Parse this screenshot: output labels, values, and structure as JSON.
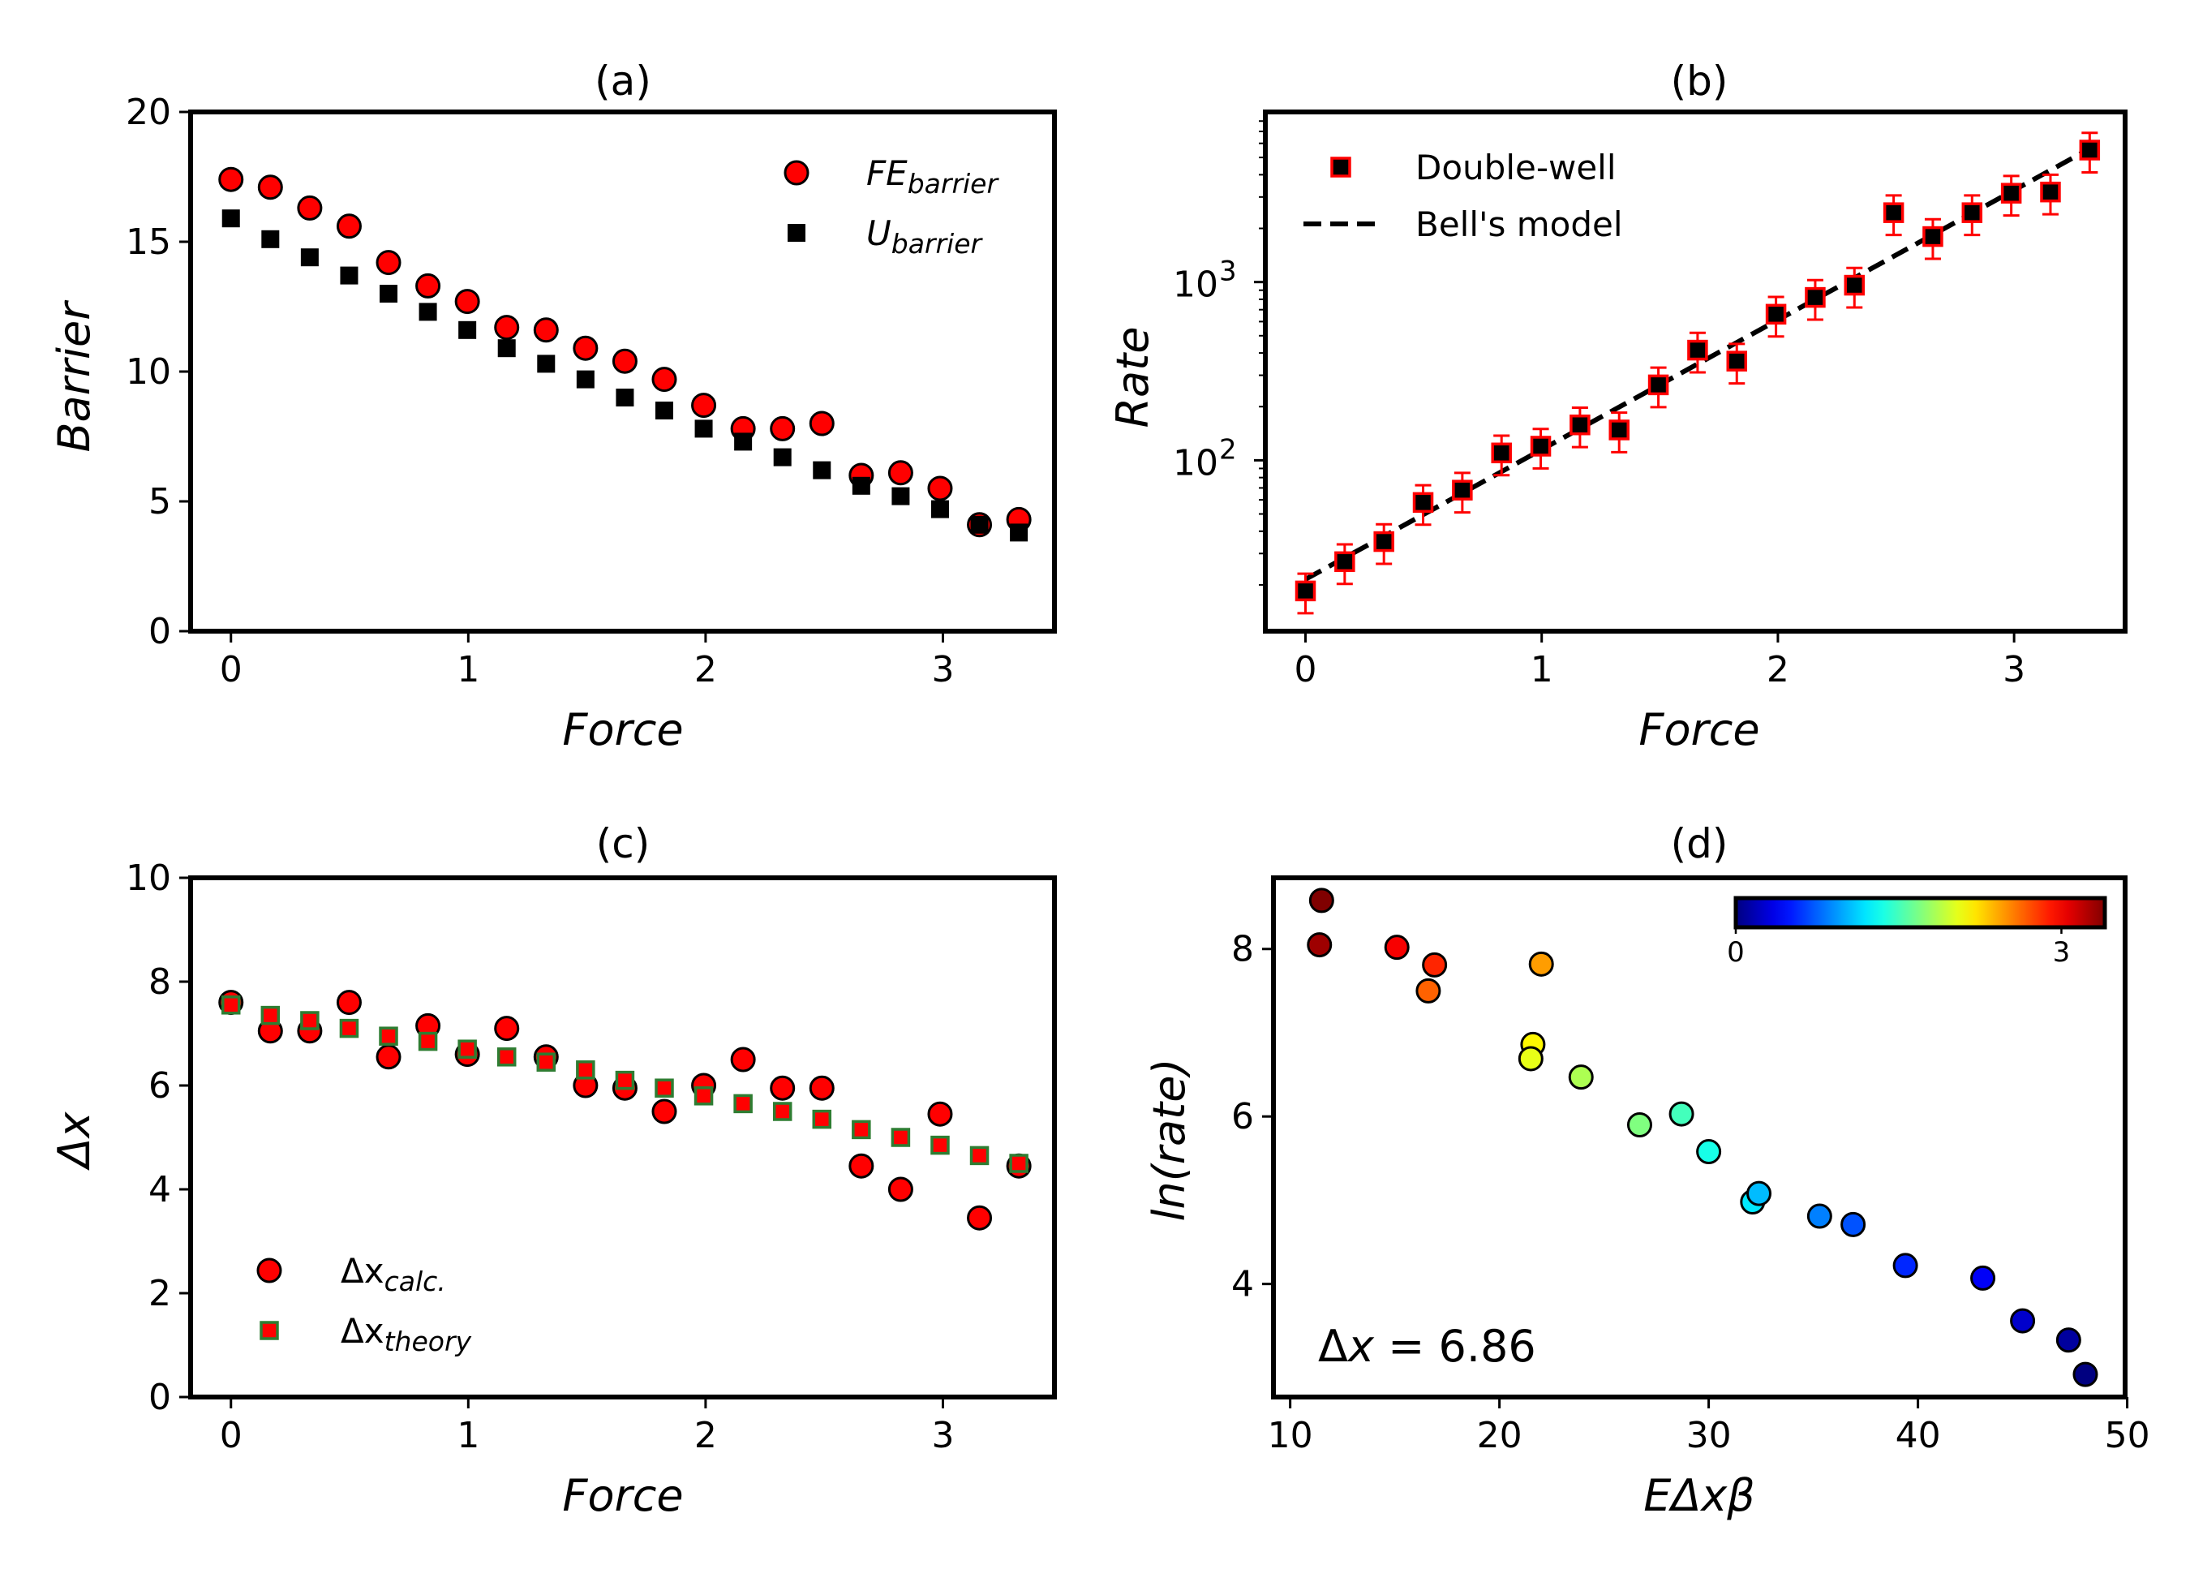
{
  "chart_data": [
    {
      "id": "a",
      "type": "scatter",
      "title": "(a)",
      "xlabel": "Force",
      "ylabel": "Barrier",
      "xlim": [
        -0.17,
        3.47
      ],
      "ylim": [
        0,
        20
      ],
      "xticks": [
        "0",
        "1",
        "2",
        "3"
      ],
      "yticks": [
        "0",
        "5",
        "10",
        "15",
        "20"
      ],
      "legend_position": "upper right",
      "series": [
        {
          "name": "FE_barrier",
          "legend_main": "FE",
          "legend_sub": "barrier",
          "marker": "circle",
          "color": "#ff0000",
          "x": [
            0,
            0.166,
            0.332,
            0.498,
            0.664,
            0.83,
            0.996,
            1.162,
            1.328,
            1.494,
            1.66,
            1.826,
            1.992,
            2.158,
            2.324,
            2.49,
            2.656,
            2.822,
            2.988,
            3.154,
            3.32
          ],
          "y": [
            17.4,
            17.1,
            16.3,
            15.6,
            14.2,
            13.3,
            12.7,
            11.7,
            11.6,
            10.9,
            10.4,
            9.7,
            8.7,
            7.8,
            7.8,
            8.0,
            6.0,
            6.1,
            5.5,
            4.1,
            4.3
          ]
        },
        {
          "name": "U_barrier",
          "legend_main": "U",
          "legend_sub": "barrier",
          "marker": "square",
          "color": "#000000",
          "x": [
            0,
            0.166,
            0.332,
            0.498,
            0.664,
            0.83,
            0.996,
            1.162,
            1.328,
            1.494,
            1.66,
            1.826,
            1.992,
            2.158,
            2.324,
            2.49,
            2.656,
            2.822,
            2.988,
            3.154,
            3.32
          ],
          "y": [
            15.9,
            15.1,
            14.4,
            13.7,
            13.0,
            12.3,
            11.6,
            10.9,
            10.3,
            9.7,
            9.0,
            8.5,
            7.8,
            7.3,
            6.7,
            6.2,
            5.6,
            5.2,
            4.7,
            4.1,
            3.8
          ]
        }
      ]
    },
    {
      "id": "b",
      "type": "scatter",
      "title": "(b)",
      "xlabel": "Force",
      "ylabel": "Rate",
      "xscale": "linear",
      "yscale": "log",
      "xlim": [
        -0.17,
        3.47
      ],
      "ylim": [
        11,
        9000
      ],
      "xticks": [
        "0",
        "1",
        "2",
        "3"
      ],
      "yticks_major": [
        100,
        1000
      ],
      "ytick_labels": [
        "10",
        "10"
      ],
      "ytick_exponents": [
        "2",
        "3"
      ],
      "legend_position": "upper left",
      "series": [
        {
          "name": "Double-well",
          "marker": "square",
          "color": "#000000",
          "edgecolor": "#ff0000",
          "errorbars": true,
          "x": [
            0,
            0.166,
            0.332,
            0.498,
            0.664,
            0.83,
            0.996,
            1.162,
            1.328,
            1.494,
            1.66,
            1.826,
            1.992,
            2.158,
            2.324,
            2.49,
            2.656,
            2.822,
            2.988,
            3.154,
            3.32
          ],
          "y": [
            18.5,
            27,
            35,
            58,
            68,
            110,
            120,
            158,
            148,
            265,
            415,
            360,
            660,
            820,
            960,
            2450,
            1800,
            2450,
            3150,
            3200,
            5500
          ],
          "yerr_rel": 0.25
        },
        {
          "name": "Bell's model",
          "type": "line",
          "style": "dashed",
          "color": "#000000",
          "x": [
            0,
            3.32
          ],
          "y": [
            21.5,
            5600
          ]
        }
      ]
    },
    {
      "id": "c",
      "type": "scatter",
      "title": "(c)",
      "xlabel": "Force",
      "ylabel": "Δx",
      "xlim": [
        -0.17,
        3.47
      ],
      "ylim": [
        0,
        10
      ],
      "xticks": [
        "0",
        "1",
        "2",
        "3"
      ],
      "yticks": [
        "0",
        "2",
        "4",
        "6",
        "8",
        "10"
      ],
      "legend_position": "lower left",
      "series": [
        {
          "name": "Δx_calc.",
          "legend_main": "Δx",
          "legend_sub": "calc.",
          "marker": "circle",
          "color": "#ff0000",
          "x": [
            0,
            0.166,
            0.332,
            0.498,
            0.664,
            0.83,
            0.996,
            1.162,
            1.328,
            1.494,
            1.66,
            1.826,
            1.992,
            2.158,
            2.324,
            2.49,
            2.656,
            2.822,
            2.988,
            3.154,
            3.32
          ],
          "y": [
            7.6,
            7.05,
            7.05,
            7.6,
            6.55,
            7.15,
            6.6,
            7.1,
            6.55,
            6.0,
            5.95,
            5.5,
            6.0,
            6.5,
            5.95,
            5.95,
            4.45,
            4.0,
            5.45,
            3.45,
            4.45
          ]
        },
        {
          "name": "Δx_theory",
          "legend_main": "Δx",
          "legend_sub": "theory",
          "marker": "square",
          "color": "#ff0000",
          "edgecolor": "#2e7d32",
          "x": [
            0,
            0.166,
            0.332,
            0.498,
            0.664,
            0.83,
            0.996,
            1.162,
            1.328,
            1.494,
            1.66,
            1.826,
            1.992,
            2.158,
            2.324,
            2.49,
            2.656,
            2.822,
            2.988,
            3.154,
            3.32
          ],
          "y": [
            7.55,
            7.35,
            7.25,
            7.1,
            6.95,
            6.85,
            6.7,
            6.55,
            6.45,
            6.3,
            6.1,
            5.95,
            5.8,
            5.65,
            5.5,
            5.35,
            5.15,
            5.0,
            4.85,
            4.65,
            4.5
          ]
        }
      ]
    },
    {
      "id": "d",
      "type": "scatter",
      "title": "(d)",
      "xlabel": "EΔxβ",
      "ylabel": "ln(rate)",
      "xlim": [
        9.2,
        49.9
      ],
      "ylim": [
        2.65,
        8.85
      ],
      "xticks": [
        "10",
        "20",
        "30",
        "40",
        "50"
      ],
      "yticks": [
        "4",
        "6",
        "8"
      ],
      "annotation": "Δx = 6.86",
      "annotation_parts": [
        "Δ",
        "x",
        " = 6.86"
      ],
      "colorbar": {
        "cmap": "jet",
        "range": [
          0,
          3.4
        ],
        "tick_labels": [
          "0",
          "3"
        ],
        "tick_values": [
          0,
          3
        ],
        "position": "upper right"
      },
      "points": [
        {
          "x": 11.5,
          "y": 8.58,
          "c": 3.4
        },
        {
          "x": 11.4,
          "y": 8.05,
          "c": 3.3
        },
        {
          "x": 15.1,
          "y": 8.02,
          "c": 3.0
        },
        {
          "x": 16.9,
          "y": 7.81,
          "c": 2.85
        },
        {
          "x": 16.6,
          "y": 7.5,
          "c": 2.65
        },
        {
          "x": 22.0,
          "y": 7.82,
          "c": 2.45
        },
        {
          "x": 21.6,
          "y": 6.86,
          "c": 2.15
        },
        {
          "x": 21.5,
          "y": 6.69,
          "c": 2.05
        },
        {
          "x": 23.9,
          "y": 6.47,
          "c": 1.85
        },
        {
          "x": 26.7,
          "y": 5.9,
          "c": 1.7
        },
        {
          "x": 28.7,
          "y": 6.03,
          "c": 1.5
        },
        {
          "x": 30.0,
          "y": 5.58,
          "c": 1.35
        },
        {
          "x": 32.1,
          "y": 4.98,
          "c": 1.2
        },
        {
          "x": 32.4,
          "y": 5.08,
          "c": 1.05
        },
        {
          "x": 35.3,
          "y": 4.81,
          "c": 0.85
        },
        {
          "x": 36.9,
          "y": 4.71,
          "c": 0.7
        },
        {
          "x": 39.4,
          "y": 4.22,
          "c": 0.55
        },
        {
          "x": 43.1,
          "y": 4.07,
          "c": 0.4
        },
        {
          "x": 45.0,
          "y": 3.56,
          "c": 0.25
        },
        {
          "x": 47.2,
          "y": 3.33,
          "c": 0.1
        },
        {
          "x": 48.0,
          "y": 2.92,
          "c": 0.0
        }
      ]
    }
  ]
}
